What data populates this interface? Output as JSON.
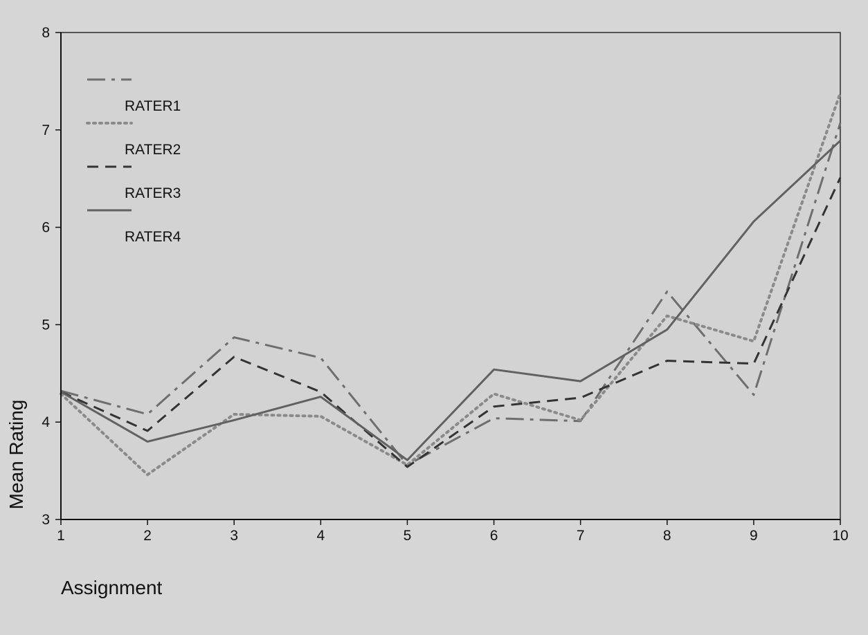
{
  "chart_data": {
    "type": "line",
    "title": "",
    "xlabel": "Assignment",
    "ylabel": "Mean Rating",
    "x": [
      1,
      2,
      3,
      4,
      5,
      6,
      7,
      8,
      9,
      10
    ],
    "xlim": [
      1,
      10
    ],
    "ylim": [
      3,
      8
    ],
    "xticks": [
      "1",
      "2",
      "3",
      "4",
      "5",
      "6",
      "7",
      "8",
      "9",
      "10"
    ],
    "yticks": [
      "3",
      "4",
      "5",
      "6",
      "7",
      "8"
    ],
    "grid": false,
    "legend_position": "top-left",
    "series": [
      {
        "name": "RATER1",
        "style": "dash-dot",
        "color": "#6e6e6e",
        "values": [
          4.32,
          4.08,
          4.87,
          4.66,
          3.56,
          4.04,
          4.01,
          5.34,
          4.28,
          7.07
        ]
      },
      {
        "name": "RATER2",
        "style": "dotted",
        "color": "#8a8a8a",
        "values": [
          4.29,
          3.46,
          4.08,
          4.06,
          3.56,
          4.29,
          4.02,
          5.09,
          4.83,
          7.38
        ]
      },
      {
        "name": "RATER3",
        "style": "dashed",
        "color": "#333333",
        "values": [
          4.31,
          3.91,
          4.67,
          4.31,
          3.54,
          4.16,
          4.25,
          4.63,
          4.6,
          6.51
        ]
      },
      {
        "name": "RATER4",
        "style": "solid",
        "color": "#616161",
        "values": [
          4.31,
          3.8,
          4.02,
          4.26,
          3.61,
          4.54,
          4.42,
          4.95,
          6.06,
          6.89
        ]
      }
    ]
  }
}
